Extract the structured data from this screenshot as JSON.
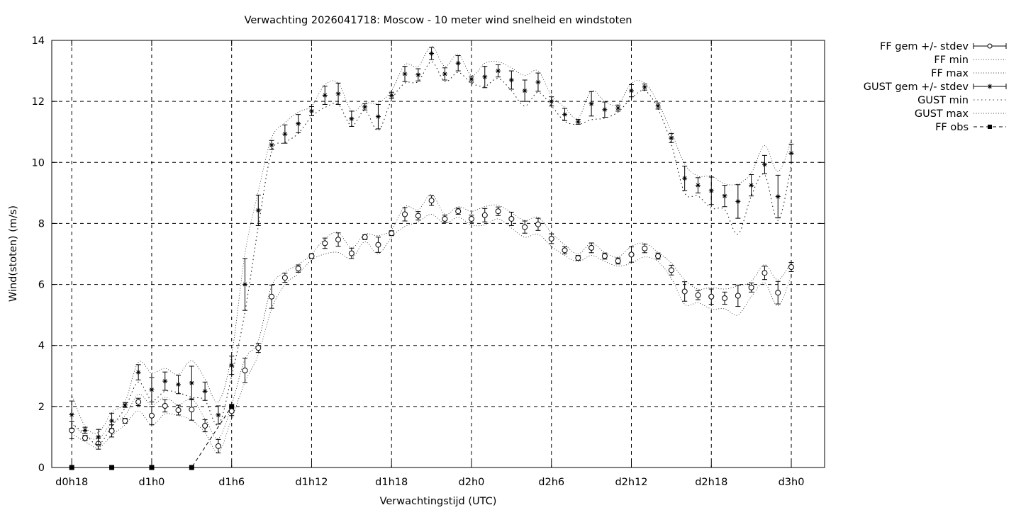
{
  "chart_data": {
    "type": "line",
    "title": "Verwachting 2026041718: Moscow - 10 meter wind snelheid en windstoten",
    "xlabel": "Verwachtingstijd (UTC)",
    "ylabel": "Wind(stoten) (m/s)",
    "x_unit": "hours since d0h18",
    "x_ticks": [
      {
        "x": 0,
        "label": "d0h18"
      },
      {
        "x": 6,
        "label": "d1h0"
      },
      {
        "x": 12,
        "label": "d1h6"
      },
      {
        "x": 18,
        "label": "d1h12"
      },
      {
        "x": 24,
        "label": "d1h18"
      },
      {
        "x": 30,
        "label": "d2h0"
      },
      {
        "x": 36,
        "label": "d2h6"
      },
      {
        "x": 42,
        "label": "d2h12"
      },
      {
        "x": 48,
        "label": "d2h18"
      },
      {
        "x": 54,
        "label": "d3h0"
      }
    ],
    "xlim": [
      -1.5,
      56.5
    ],
    "ylim": [
      0,
      14
    ],
    "y_ticks": [
      0,
      2,
      4,
      6,
      8,
      10,
      12,
      14
    ],
    "grid": true,
    "legend_position": "outside-right",
    "x": [
      0,
      1,
      2,
      3,
      4,
      5,
      6,
      7,
      8,
      9,
      10,
      11,
      12,
      13,
      14,
      15,
      16,
      17,
      18,
      19,
      20,
      21,
      22,
      23,
      24,
      25,
      26,
      27,
      28,
      29,
      30,
      31,
      32,
      33,
      34,
      35,
      36,
      37,
      38,
      39,
      40,
      41,
      42,
      43,
      44,
      45,
      46,
      47,
      48,
      49,
      50,
      51,
      52,
      53,
      54
    ],
    "series": [
      {
        "name": "FF gem +/- stdev",
        "style": "errorbar-circle",
        "values": [
          1.22,
          0.97,
          0.78,
          1.2,
          1.53,
          2.15,
          1.7,
          2.02,
          1.88,
          1.9,
          1.37,
          0.7,
          1.85,
          3.18,
          3.92,
          5.6,
          6.22,
          6.52,
          6.93,
          7.35,
          7.47,
          7.02,
          7.55,
          7.3,
          7.68,
          8.3,
          8.25,
          8.75,
          8.15,
          8.4,
          8.15,
          8.27,
          8.4,
          8.15,
          7.88,
          7.97,
          7.5,
          7.12,
          6.87,
          7.2,
          6.93,
          6.77,
          6.98,
          7.18,
          6.93,
          6.47,
          5.77,
          5.65,
          5.6,
          5.55,
          5.63,
          5.9,
          6.38,
          5.73,
          6.57
        ],
        "stdev": [
          0.28,
          0.08,
          0.18,
          0.2,
          0.08,
          0.12,
          0.3,
          0.2,
          0.16,
          0.35,
          0.2,
          0.22,
          0.15,
          0.4,
          0.15,
          0.38,
          0.15,
          0.12,
          0.08,
          0.17,
          0.22,
          0.17,
          0.08,
          0.25,
          0.08,
          0.22,
          0.14,
          0.16,
          0.12,
          0.1,
          0.12,
          0.22,
          0.14,
          0.22,
          0.2,
          0.2,
          0.16,
          0.12,
          0.08,
          0.16,
          0.1,
          0.1,
          0.25,
          0.14,
          0.1,
          0.16,
          0.32,
          0.15,
          0.25,
          0.2,
          0.35,
          0.15,
          0.22,
          0.37,
          0.15
        ]
      },
      {
        "name": "FF min",
        "style": "dotted",
        "values": [
          1.1,
          0.85,
          0.65,
          1.05,
          1.4,
          1.85,
          1.4,
          1.75,
          1.7,
          1.55,
          1.15,
          0.5,
          1.6,
          2.8,
          3.7,
          5.2,
          6.0,
          6.35,
          6.8,
          7.0,
          7.05,
          6.85,
          7.4,
          7.0,
          7.55,
          7.9,
          8.05,
          8.3,
          8.0,
          8.2,
          7.95,
          7.95,
          8.15,
          7.85,
          7.55,
          7.65,
          7.25,
          6.95,
          6.75,
          6.95,
          6.75,
          6.6,
          6.7,
          6.9,
          6.75,
          6.2,
          5.35,
          5.4,
          5.2,
          5.2,
          5.0,
          5.6,
          6.05,
          5.3,
          6.3
        ]
      },
      {
        "name": "FF max",
        "style": "dotted",
        "values": [
          1.45,
          1.05,
          0.95,
          1.45,
          1.7,
          2.4,
          2.05,
          2.3,
          2.05,
          2.25,
          1.6,
          0.95,
          2.05,
          3.55,
          4.15,
          5.95,
          6.4,
          6.65,
          7.0,
          7.5,
          7.7,
          7.2,
          7.65,
          7.6,
          7.8,
          8.55,
          8.45,
          8.95,
          8.3,
          8.55,
          8.4,
          8.55,
          8.6,
          8.35,
          8.1,
          8.2,
          7.7,
          7.3,
          7.0,
          7.35,
          7.05,
          6.9,
          7.25,
          7.35,
          7.05,
          6.7,
          6.15,
          5.85,
          5.9,
          5.85,
          5.95,
          6.1,
          6.65,
          6.15,
          6.75
        ]
      },
      {
        "name": "GUST gem +/- stdev",
        "style": "errorbar-star",
        "values": [
          1.73,
          1.22,
          1.0,
          1.53,
          2.05,
          3.12,
          2.55,
          2.83,
          2.72,
          2.77,
          2.5,
          1.72,
          3.35,
          6.0,
          8.43,
          10.57,
          10.93,
          11.27,
          11.68,
          12.2,
          12.25,
          11.43,
          11.82,
          11.5,
          12.2,
          12.9,
          12.87,
          13.57,
          12.9,
          13.25,
          12.73,
          12.8,
          13.0,
          12.7,
          12.35,
          12.63,
          12.0,
          11.57,
          11.33,
          11.92,
          11.73,
          11.78,
          12.35,
          12.47,
          11.85,
          10.8,
          9.48,
          9.25,
          9.07,
          8.9,
          8.72,
          9.25,
          9.93,
          8.88,
          10.3
        ],
        "stdev": [
          0.45,
          0.1,
          0.25,
          0.25,
          0.08,
          0.25,
          0.4,
          0.3,
          0.3,
          0.55,
          0.3,
          0.3,
          0.3,
          0.85,
          0.5,
          0.15,
          0.3,
          0.3,
          0.15,
          0.3,
          0.35,
          0.25,
          0.1,
          0.4,
          0.1,
          0.25,
          0.2,
          0.2,
          0.2,
          0.25,
          0.1,
          0.35,
          0.2,
          0.3,
          0.35,
          0.3,
          0.15,
          0.2,
          0.08,
          0.4,
          0.25,
          0.1,
          0.2,
          0.1,
          0.1,
          0.15,
          0.4,
          0.25,
          0.45,
          0.35,
          0.55,
          0.35,
          0.3,
          0.7,
          0.3
        ]
      },
      {
        "name": "GUST min",
        "style": "dotted",
        "values": [
          1.45,
          1.1,
          0.75,
          1.35,
          1.95,
          2.8,
          2.2,
          2.5,
          2.45,
          2.3,
          2.2,
          1.4,
          3.0,
          5.1,
          7.9,
          10.35,
          10.65,
          10.95,
          11.5,
          11.8,
          11.9,
          11.2,
          11.7,
          11.05,
          12.05,
          12.6,
          12.65,
          13.3,
          12.65,
          12.95,
          12.6,
          12.5,
          12.75,
          12.35,
          11.85,
          12.3,
          11.85,
          11.35,
          11.25,
          11.4,
          11.45,
          11.65,
          12.1,
          12.35,
          11.75,
          10.6,
          9.0,
          8.9,
          8.5,
          8.45,
          7.65,
          8.9,
          9.6,
          8.1,
          9.9
        ]
      },
      {
        "name": "GUST max",
        "style": "dotted",
        "values": [
          2.4,
          1.35,
          1.15,
          1.8,
          2.15,
          3.45,
          3.1,
          3.25,
          3.05,
          3.5,
          2.9,
          2.15,
          3.7,
          7.0,
          9.05,
          10.8,
          11.3,
          11.65,
          11.85,
          12.55,
          12.6,
          11.7,
          11.95,
          11.95,
          12.35,
          13.2,
          13.15,
          13.8,
          13.15,
          13.55,
          12.85,
          13.25,
          13.3,
          13.1,
          12.85,
          13.0,
          12.2,
          11.8,
          11.45,
          12.35,
          12.0,
          11.9,
          12.6,
          12.6,
          11.95,
          11.0,
          9.95,
          9.55,
          9.55,
          9.3,
          9.3,
          9.65,
          10.55,
          9.7,
          10.7
        ]
      },
      {
        "name": "FF obs",
        "style": "square-dashed",
        "x": [
          0,
          3,
          6,
          9,
          12
        ],
        "values": [
          0,
          0,
          0,
          0,
          2
        ]
      }
    ]
  }
}
